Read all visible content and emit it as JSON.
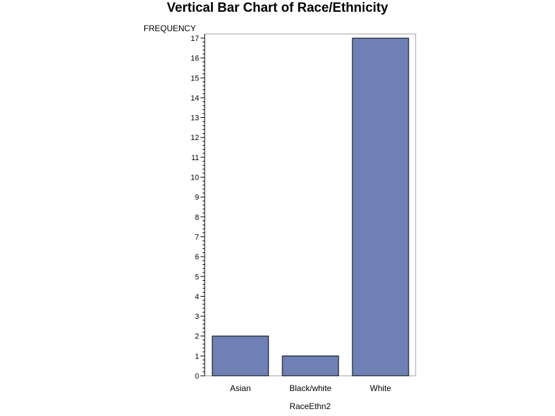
{
  "chart_data": {
    "type": "bar",
    "title": "Vertical Bar Chart of Race/Ethnicity",
    "xlabel": "RaceEthn2",
    "ylabel": "FREQUENCY",
    "categories": [
      "Asian",
      "Black/white",
      "White"
    ],
    "values": [
      2,
      1,
      17
    ],
    "ylim": [
      0,
      17
    ],
    "yticks": [
      "0",
      "1",
      "2",
      "3",
      "4",
      "5",
      "6",
      "7",
      "8",
      "9",
      "10",
      "11",
      "12",
      "13",
      "14",
      "15",
      "16",
      "17"
    ],
    "grid": false,
    "legend": "none",
    "colors": {
      "bar_fill": "#6f80b4",
      "bar_stroke": "#000000",
      "frame": "#a0a0a0"
    }
  }
}
